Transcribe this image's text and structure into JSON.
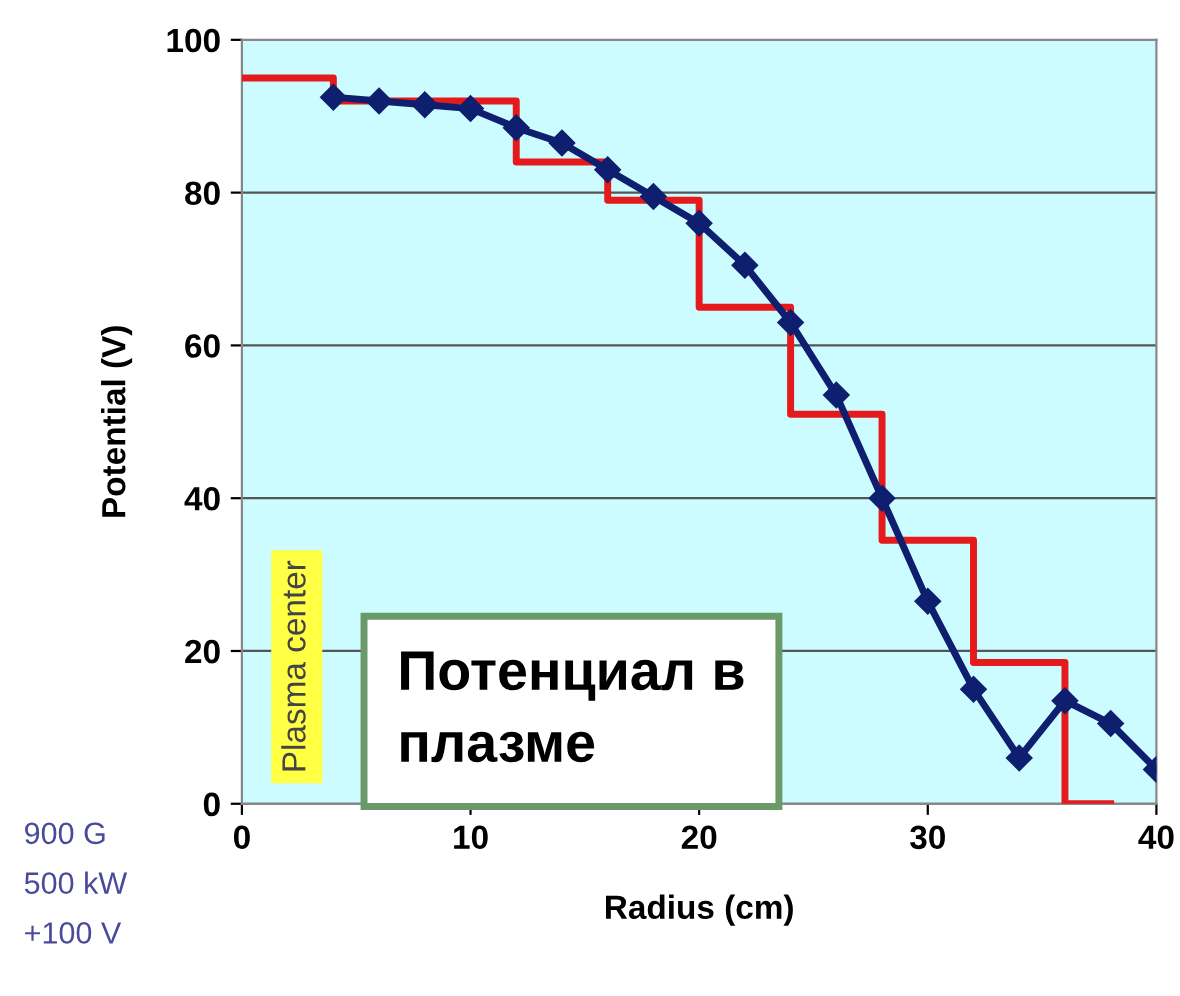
{
  "chart_data": {
    "type": "line",
    "xlabel": "Radius (cm)",
    "ylabel": "Potential (V)",
    "xlim": [
      0,
      40
    ],
    "xticks": [
      0,
      10,
      20,
      30,
      40
    ],
    "ylim": [
      0,
      100
    ],
    "yticks": [
      0,
      20,
      40,
      60,
      80,
      100
    ],
    "grid": "y",
    "legend": false,
    "series": [
      {
        "type": "step",
        "color": "#e41a1c",
        "marker": "none",
        "x": [
          0,
          4,
          12,
          16,
          20,
          24,
          28,
          32,
          36,
          38
        ],
        "values": [
          95,
          92,
          84,
          79,
          65,
          51,
          34.5,
          18.5,
          0,
          0
        ]
      },
      {
        "color": "#0d1f6e",
        "marker": "diamond",
        "x": [
          4,
          6,
          8,
          10,
          12,
          14,
          16,
          18,
          20,
          22,
          24,
          26,
          28,
          30,
          32,
          34,
          36,
          38,
          40
        ],
        "values": [
          92.5,
          92,
          91.5,
          91,
          88.5,
          86.5,
          83,
          79.5,
          76,
          70.5,
          63,
          53.5,
          40,
          26.5,
          15,
          6,
          13.5,
          10.5,
          4.5
        ]
      }
    ],
    "annotations": [
      "Plasma center",
      "Потенциал в плазме",
      "900 G",
      "500 kW",
      "+100 V"
    ]
  }
}
